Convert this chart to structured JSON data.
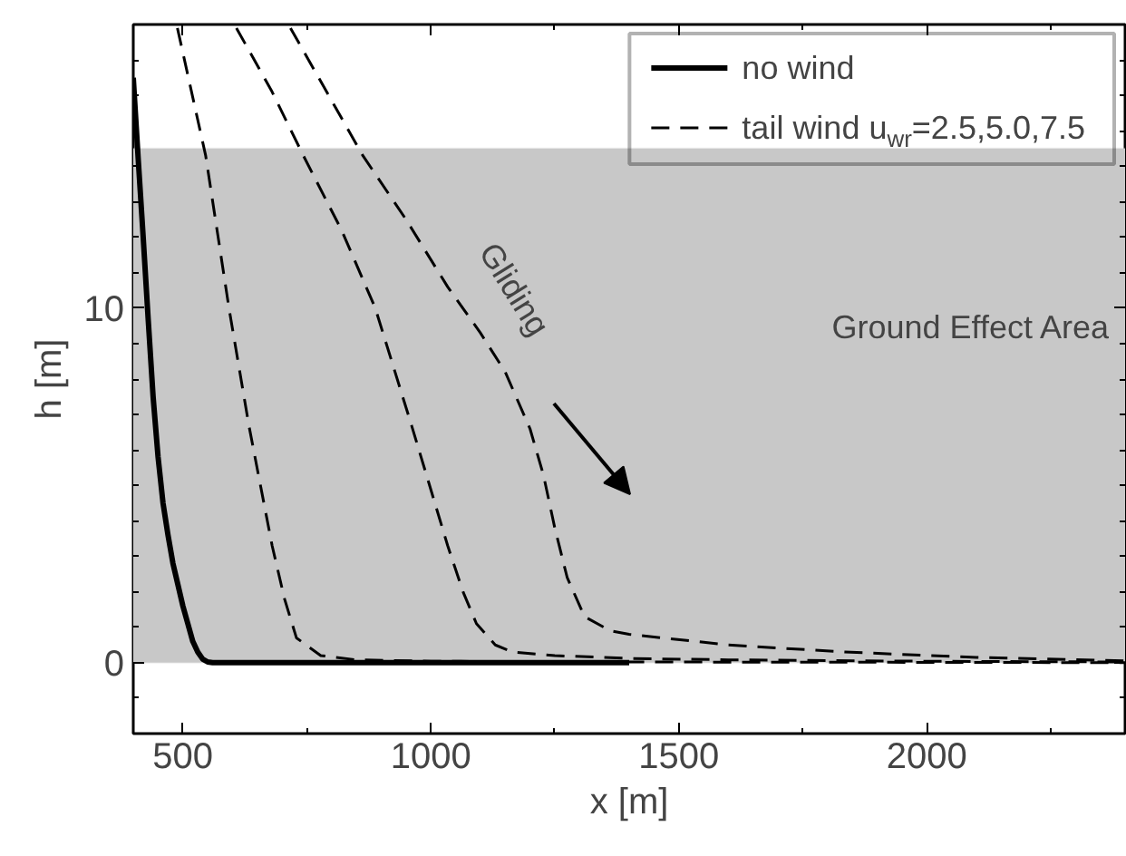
{
  "chart_data": {
    "type": "line",
    "xlabel": "x [m]",
    "ylabel": "h [m]",
    "xlim": [
      400,
      2400
    ],
    "ylim": [
      -2,
      18
    ],
    "xticks": [
      500,
      1000,
      1500,
      2000
    ],
    "yticks": [
      0,
      10
    ],
    "grid": false,
    "legend": "top right",
    "marker": "none",
    "series": [
      {
        "name": "no wind",
        "color": "#000000",
        "line_style": "solid",
        "x": [
          400,
          410,
          420,
          430,
          440,
          450,
          460,
          470,
          480,
          490,
          500,
          510,
          520,
          530,
          540,
          550,
          560,
          700,
          1000,
          1400
        ],
        "values": [
          16.5,
          14.2,
          12,
          9.7,
          7.5,
          5.8,
          4.5,
          3.6,
          2.8,
          2.2,
          1.6,
          1.1,
          0.6,
          0.3,
          0.1,
          0.02,
          0,
          0,
          0,
          0
        ]
      },
      {
        "name": "tail wind u$_{wr}$=2.5,5.0,7.5",
        "color": "#000000",
        "line_style": "dashed",
        "x": [
          489,
          546,
          593,
          633,
          680,
          705,
          729,
          778,
          850,
          1000,
          1400,
          2000,
          2400
        ],
        "values": [
          17.9,
          14.3,
          10,
          6.7,
          3.3,
          1.8,
          0.7,
          0.2,
          0.08,
          0.04,
          0.02,
          0.01,
          0
        ]
      },
      {
        "color": "#000000",
        "line_style": "dashed",
        "x": [
          608,
          680,
          743,
          820,
          888,
          961,
          1034,
          1065,
          1092,
          1130,
          1165,
          1250,
          1400,
          1600,
          2000,
          2400
        ],
        "values": [
          17.9,
          16.1,
          14.3,
          12.2,
          10,
          6.7,
          3.3,
          2,
          1.1,
          0.5,
          0.3,
          0.2,
          0.12,
          0.08,
          0.04,
          0.02
        ]
      },
      {
        "color": "#000000",
        "line_style": "dashed",
        "x": [
          717,
          790,
          863,
          950,
          1034,
          1100,
          1150,
          1200,
          1227,
          1250,
          1275,
          1310,
          1362,
          1400,
          1467,
          1600,
          1835,
          2100,
          2400
        ],
        "values": [
          17.9,
          16.1,
          14.3,
          12.5,
          10.6,
          9.3,
          8.2,
          6.6,
          5.3,
          3.8,
          2.4,
          1.3,
          0.9,
          0.8,
          0.7,
          0.5,
          0.3,
          0.15,
          0.05
        ]
      }
    ],
    "bands": [
      {
        "axis": "y",
        "from": 0,
        "to": 14.5,
        "label": "Ground Effect Area",
        "color": "#c8c8c8"
      }
    ],
    "annotations": [
      "Gliding"
    ]
  }
}
